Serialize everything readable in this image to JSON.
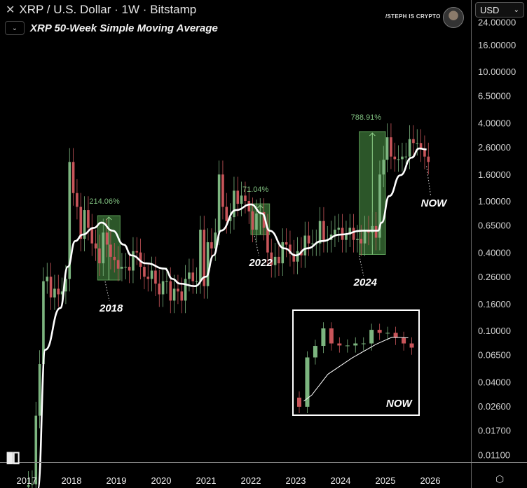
{
  "header": {
    "symbol_title": "XRP / U.S. Dollar · 1W · Bitstamp",
    "indicator_label": "XRP 50-Week Simple Moving Average",
    "watermark": "/STEPH IS CRYPTO",
    "currency": "USD",
    "logo": "TV"
  },
  "icons": {
    "close": "close-icon",
    "collapse": "chevron-down-icon",
    "settings": "settings-hexagon-icon",
    "currency_dropdown": "chevron-down-icon"
  },
  "colors": {
    "up": "#7cb57f",
    "down": "#c9555a",
    "sma": "#ffffff",
    "box": "#3f7a3a",
    "pct": "#7fbf7f"
  },
  "chart_data": {
    "type": "candlestick",
    "title": "XRP / U.S. Dollar · 1W · Bitstamp",
    "yscale": "log",
    "ylim": [
      0.006,
      30
    ],
    "xlim": [
      "2016-11",
      "2026-07"
    ],
    "grid": false,
    "y_ticks": [
      "24.00000",
      "16.00000",
      "10.00000",
      "6.50000",
      "4.00000",
      "2.60000",
      "1.60000",
      "1.00000",
      "0.65000",
      "0.40000",
      "0.26000",
      "0.16000",
      "0.10000",
      "0.06500",
      "0.04000",
      "0.02600",
      "0.01700",
      "0.01100"
    ],
    "x_ticks": [
      "2017",
      "2018",
      "2019",
      "2020",
      "2021",
      "2022",
      "2023",
      "2024",
      "2025",
      "2026"
    ],
    "price": {
      "start": "2017-01",
      "interval": "1M",
      "close": [
        0.0064,
        0.0065,
        0.022,
        0.055,
        0.24,
        0.26,
        0.18,
        0.21,
        0.19,
        0.2,
        0.25,
        2.0,
        1.15,
        0.9,
        0.51,
        0.85,
        0.62,
        0.47,
        0.43,
        0.33,
        0.57,
        0.46,
        0.37,
        0.35,
        0.3,
        0.31,
        0.31,
        0.29,
        0.41,
        0.4,
        0.31,
        0.26,
        0.25,
        0.29,
        0.23,
        0.19,
        0.24,
        0.24,
        0.17,
        0.21,
        0.2,
        0.17,
        0.25,
        0.28,
        0.24,
        0.24,
        0.6,
        0.22,
        0.48,
        0.43,
        0.57,
        1.6,
        0.9,
        0.7,
        0.75,
        1.2,
        0.95,
        1.1,
        1.0,
        0.83,
        0.6,
        0.8,
        0.82,
        0.62,
        0.4,
        0.32,
        0.37,
        0.33,
        0.48,
        0.46,
        0.39,
        0.34,
        0.41,
        0.38,
        0.54,
        0.47,
        0.47,
        0.47,
        0.7,
        0.5,
        0.5,
        0.55,
        0.6,
        0.62,
        0.5,
        0.55,
        0.62,
        0.5,
        0.51,
        0.47,
        0.6,
        0.57,
        0.64,
        0.52,
        1.6,
        2.08,
        3.1,
        2.2,
        2.1,
        2.1,
        2.2,
        2.2,
        3.0,
        2.8,
        2.8,
        2.5,
        2.2,
        2.0
      ]
    },
    "sma": {
      "name": "XRP 50-Week Simple Moving Average",
      "points": [
        [
          "2017-04",
          0.006
        ],
        [
          "2017-06",
          0.071
        ],
        [
          "2017-10",
          0.149
        ],
        [
          "2017-12",
          0.31
        ],
        [
          "2018-02",
          0.49
        ],
        [
          "2018-04",
          0.55
        ],
        [
          "2018-07",
          0.62
        ],
        [
          "2018-09",
          0.68
        ],
        [
          "2018-12",
          0.59
        ],
        [
          "2019-03",
          0.46
        ],
        [
          "2019-05",
          0.38
        ],
        [
          "2019-09",
          0.33
        ],
        [
          "2020-02",
          0.3
        ],
        [
          "2020-04",
          0.25
        ],
        [
          "2020-06",
          0.23
        ],
        [
          "2020-10",
          0.22
        ],
        [
          "2021-01",
          0.26
        ],
        [
          "2021-03",
          0.38
        ],
        [
          "2021-05",
          0.59
        ],
        [
          "2021-09",
          0.85
        ],
        [
          "2022-01",
          0.94
        ],
        [
          "2022-04",
          0.8
        ],
        [
          "2022-06",
          0.59
        ],
        [
          "2022-10",
          0.43
        ],
        [
          "2023-01",
          0.38
        ],
        [
          "2023-04",
          0.43
        ],
        [
          "2023-08",
          0.49
        ],
        [
          "2024-01",
          0.55
        ],
        [
          "2024-07",
          0.59
        ],
        [
          "2024-11",
          0.59
        ],
        [
          "2024-12",
          0.68
        ],
        [
          "2025-02",
          1.09
        ],
        [
          "2025-05",
          1.58
        ],
        [
          "2025-08",
          2.16
        ],
        [
          "2025-10",
          2.54
        ],
        [
          "2025-12",
          2.5
        ]
      ]
    },
    "measure_boxes": [
      {
        "label": "214.06%",
        "from": "2018-08",
        "to": "2019-02",
        "low": 0.245,
        "high": 0.77
      },
      {
        "label": "71.04%",
        "from": "2022-01",
        "to": "2022-06",
        "low": 0.55,
        "high": 0.95
      },
      {
        "label": "788.91%",
        "from": "2024-06",
        "to": "2025-01",
        "low": 0.386,
        "high": 3.43
      }
    ],
    "annotations": [
      {
        "text": "2018",
        "date": "2018-10",
        "price": 0.245
      },
      {
        "text": "2022",
        "date": "2022-02",
        "price": 0.55
      },
      {
        "text": "2024",
        "date": "2024-06",
        "price": 0.386
      },
      {
        "text": "NOW",
        "date": "2025-12",
        "price": 1.9
      }
    ],
    "inset": {
      "label": "NOW",
      "from": "2024-10",
      "to": "2026-01"
    }
  }
}
